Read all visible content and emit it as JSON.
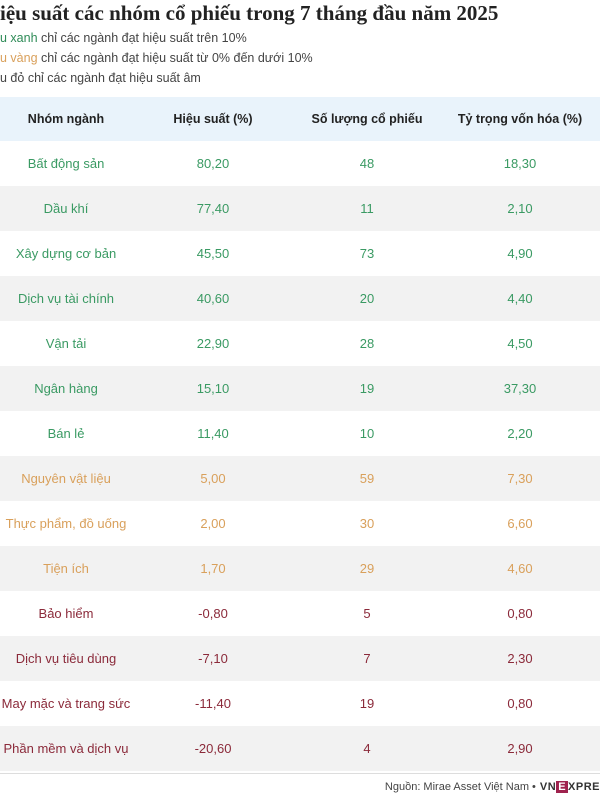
{
  "title": "iệu suất các nhóm cổ phiếu trong 7 tháng đầu năm 2025",
  "legend": [
    {
      "keyword": "u xanh",
      "rest": " chỉ các ngành đạt hiệu suất trên 10%",
      "color": "#2e8b57"
    },
    {
      "keyword": "u vàng",
      "rest": " chỉ các ngành đạt hiệu suất từ 0% đến dưới 10%",
      "color": "#d9a05b"
    },
    {
      "keyword": "u đỏ",
      "rest": " chỉ các ngành đạt hiệu suất âm",
      "color": "#444444"
    }
  ],
  "colors": {
    "green": "#3a9a63",
    "yellow": "#d9a05b",
    "red": "#8b2a3a",
    "header_bg": "#e9f3fb"
  },
  "chart_data": {
    "type": "table",
    "columns": [
      "Nhóm ngành",
      "Hiệu suất (%)",
      "Số lượng cổ phiếu",
      "Tỷ trọng vốn hóa (%)"
    ],
    "rows": [
      {
        "name": "Bất động sản",
        "perf": "80,20",
        "count": "48",
        "weight": "18,30",
        "group": "green"
      },
      {
        "name": "Dầu khí",
        "perf": "77,40",
        "count": "11",
        "weight": "2,10",
        "group": "green"
      },
      {
        "name": "Xây dựng cơ bản",
        "perf": "45,50",
        "count": "73",
        "weight": "4,90",
        "group": "green"
      },
      {
        "name": "Dịch vụ tài chính",
        "perf": "40,60",
        "count": "20",
        "weight": "4,40",
        "group": "green"
      },
      {
        "name": "Vận tải",
        "perf": "22,90",
        "count": "28",
        "weight": "4,50",
        "group": "green"
      },
      {
        "name": "Ngân hàng",
        "perf": "15,10",
        "count": "19",
        "weight": "37,30",
        "group": "green"
      },
      {
        "name": "Bán lẻ",
        "perf": "11,40",
        "count": "10",
        "weight": "2,20",
        "group": "green"
      },
      {
        "name": "Nguyên vật liệu",
        "perf": "5,00",
        "count": "59",
        "weight": "7,30",
        "group": "yellow"
      },
      {
        "name": "Thực phẩm, đồ uống",
        "perf": "2,00",
        "count": "30",
        "weight": "6,60",
        "group": "yellow"
      },
      {
        "name": "Tiện ích",
        "perf": "1,70",
        "count": "29",
        "weight": "4,60",
        "group": "yellow"
      },
      {
        "name": "Bảo hiểm",
        "perf": "-0,80",
        "count": "5",
        "weight": "0,80",
        "group": "red"
      },
      {
        "name": "Dịch vụ tiêu dùng",
        "perf": "-7,10",
        "count": "7",
        "weight": "2,30",
        "group": "red"
      },
      {
        "name": "May mặc và trang sức",
        "perf": "-11,40",
        "count": "19",
        "weight": "0,80",
        "group": "red"
      },
      {
        "name": "Phần mềm và dịch vụ",
        "perf": "-20,60",
        "count": "4",
        "weight": "2,90",
        "group": "red"
      }
    ]
  },
  "footer": {
    "source": "Nguồn: Mirae Asset Việt Nam •",
    "brand_pre": "VN",
    "brand_e": "E",
    "brand_post": "XPRE"
  }
}
